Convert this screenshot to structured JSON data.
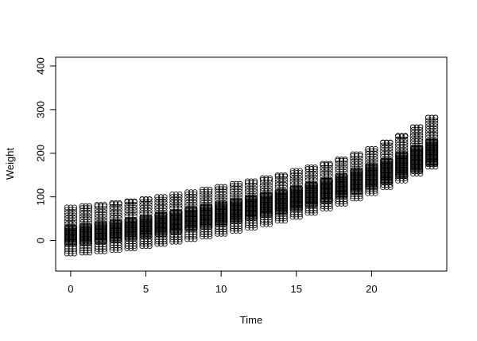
{
  "chart_data": {
    "type": "scatter",
    "title": "",
    "xlabel": "Time",
    "ylabel": "Weight",
    "xlim": [
      -1,
      25
    ],
    "ylim": [
      -70,
      420
    ],
    "xticks": [
      0,
      5,
      10,
      15,
      20
    ],
    "yticks": [
      0,
      100,
      200,
      300,
      400
    ],
    "grid": false,
    "legend": "none",
    "marker": "open-circle",
    "marker_color": "#000000",
    "series": [
      {
        "x": [
          0,
          1,
          2,
          3,
          4,
          5,
          6,
          7,
          8,
          9,
          10,
          11,
          12,
          13,
          14,
          15,
          16,
          17,
          18,
          19,
          20,
          21,
          22,
          23,
          24
        ],
        "max": [
          76,
          79,
          82,
          86,
          90,
          95,
          100,
          106,
          111,
          117,
          123,
          130,
          136,
          143,
          150,
          160,
          168,
          176,
          186,
          198,
          210,
          225,
          240,
          260,
          282
        ],
        "upper": [
          32,
          36,
          40,
          45,
          50,
          56,
          62,
          68,
          74,
          80,
          86,
          93,
          100,
          107,
          115,
          123,
          132,
          141,
          151,
          162,
          173,
          186,
          200,
          215,
          230
        ],
        "lower": [
          -8,
          -5,
          -2,
          2,
          6,
          10,
          15,
          20,
          25,
          31,
          37,
          44,
          51,
          58,
          65,
          73,
          82,
          91,
          101,
          111,
          122,
          134,
          147,
          161,
          176
        ],
        "min": [
          -30,
          -28,
          -25,
          -22,
          -18,
          -13,
          -8,
          -3,
          3,
          9,
          15,
          22,
          29,
          37,
          45,
          54,
          63,
          73,
          84,
          96,
          108,
          122,
          137,
          153,
          169
        ]
      }
    ]
  }
}
